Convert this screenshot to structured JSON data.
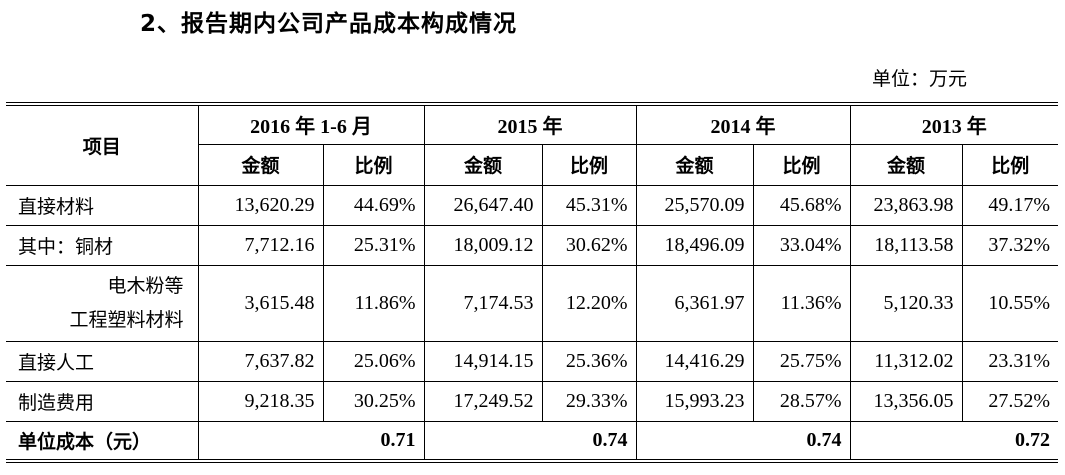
{
  "title": "2、报告期内公司产品成本构成情况",
  "unit": "单位：万元",
  "header": {
    "item": "项目",
    "years": [
      "2016 年 1-6 月",
      "2015 年",
      "2014 年",
      "2013 年"
    ],
    "amount": "金额",
    "ratio": "比例"
  },
  "rows": [
    {
      "label": "直接材料",
      "cells": [
        "13,620.29",
        "44.69%",
        "26,647.40",
        "45.31%",
        "25,570.09",
        "45.68%",
        "23,863.98",
        "49.17%"
      ]
    },
    {
      "label": "其中：铜材",
      "cells": [
        "7,712.16",
        "25.31%",
        "18,009.12",
        "30.62%",
        "18,496.09",
        "33.04%",
        "18,113.58",
        "37.32%"
      ]
    },
    {
      "label_line1": "电木粉等",
      "label_line2": "工程塑料材料",
      "cells": [
        "3,615.48",
        "11.86%",
        "7,174.53",
        "12.20%",
        "6,361.97",
        "11.36%",
        "5,120.33",
        "10.55%"
      ]
    },
    {
      "label": "直接人工",
      "cells": [
        "7,637.82",
        "25.06%",
        "14,914.15",
        "25.36%",
        "14,416.29",
        "25.75%",
        "11,312.02",
        "23.31%"
      ]
    },
    {
      "label": "制造费用",
      "cells": [
        "9,218.35",
        "30.25%",
        "17,249.52",
        "29.33%",
        "15,993.23",
        "28.57%",
        "13,356.05",
        "27.52%"
      ]
    }
  ],
  "footer": {
    "label": "单位成本（元）",
    "values": [
      "0.71",
      "0.74",
      "0.74",
      "0.72"
    ]
  }
}
